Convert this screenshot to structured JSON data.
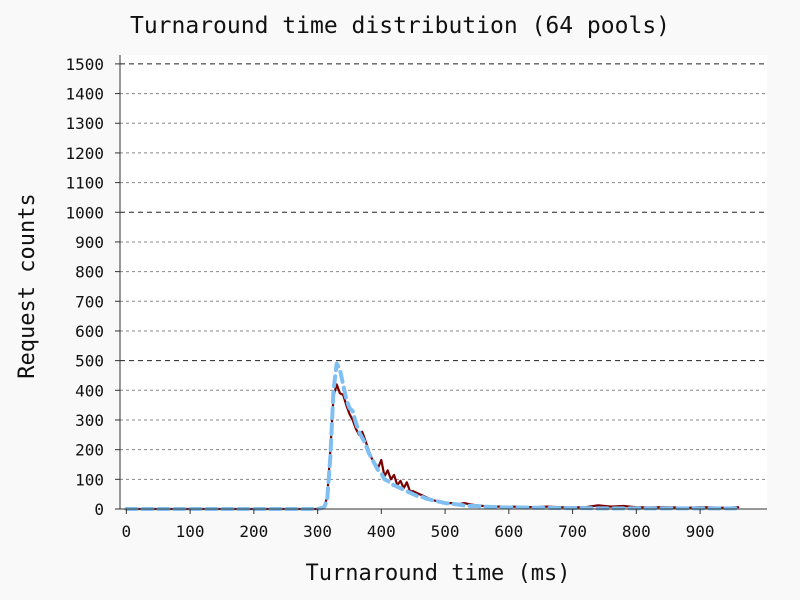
{
  "chart_data": {
    "type": "line",
    "title": "Turnaround time distribution (64 pools)",
    "xlabel": "Turnaround time (ms)",
    "ylabel": "Request counts",
    "xlim": [
      -10,
      1005
    ],
    "ylim": [
      0,
      1530
    ],
    "x_ticks": [
      0,
      100,
      200,
      300,
      400,
      500,
      600,
      700,
      800,
      900
    ],
    "y_ticks": [
      0,
      100,
      200,
      300,
      400,
      500,
      600,
      700,
      800,
      900,
      1000,
      1100,
      1200,
      1300,
      1400,
      1500
    ],
    "y_major_ticks": [
      500,
      1000,
      1500
    ],
    "grid": "horizontal dashed",
    "legend": "none",
    "series": [
      {
        "color": "#7a0000",
        "style": "solid",
        "x": [
          0,
          100,
          200,
          300,
          310,
          315,
          320,
          325,
          330,
          335,
          340,
          345,
          350,
          355,
          360,
          365,
          370,
          375,
          380,
          385,
          390,
          395,
          400,
          405,
          410,
          415,
          420,
          425,
          430,
          435,
          440,
          445,
          450,
          455,
          460,
          465,
          470,
          480,
          490,
          500,
          510,
          520,
          530,
          540,
          550,
          560,
          580,
          600,
          620,
          640,
          660,
          680,
          700,
          720,
          740,
          760,
          780,
          800,
          820,
          840,
          860,
          880,
          900,
          920,
          940,
          960
        ],
        "values": [
          0,
          0,
          0,
          0,
          5,
          40,
          200,
          380,
          420,
          390,
          385,
          350,
          320,
          300,
          270,
          250,
          260,
          230,
          200,
          170,
          155,
          140,
          165,
          110,
          130,
          100,
          115,
          80,
          95,
          70,
          90,
          60,
          60,
          55,
          50,
          45,
          40,
          30,
          25,
          20,
          20,
          15,
          20,
          15,
          12,
          10,
          8,
          8,
          7,
          6,
          8,
          6,
          5,
          6,
          12,
          8,
          10,
          6,
          5,
          6,
          5,
          4,
          6,
          5,
          4,
          6
        ]
      },
      {
        "color": "#7fbff2",
        "style": "dashed",
        "x": [
          0,
          100,
          200,
          300,
          310,
          315,
          320,
          325,
          330,
          335,
          340,
          345,
          350,
          355,
          360,
          365,
          370,
          375,
          380,
          385,
          390,
          395,
          400,
          405,
          410,
          415,
          420,
          425,
          430,
          435,
          440,
          445,
          450,
          455,
          460,
          465,
          470,
          480,
          490,
          500,
          510,
          520,
          530,
          540,
          550,
          560,
          580,
          600,
          620,
          640,
          660,
          680,
          700,
          720,
          740,
          760,
          780,
          800,
          820,
          840,
          860,
          880,
          900,
          920,
          940,
          960
        ],
        "values": [
          0,
          0,
          0,
          0,
          5,
          30,
          180,
          400,
          490,
          470,
          420,
          370,
          340,
          330,
          290,
          260,
          240,
          220,
          190,
          170,
          150,
          130,
          120,
          100,
          95,
          85,
          80,
          75,
          70,
          65,
          60,
          55,
          50,
          45,
          40,
          40,
          35,
          30,
          25,
          20,
          18,
          15,
          12,
          10,
          10,
          8,
          6,
          5,
          5,
          4,
          4,
          3,
          3,
          3,
          2,
          2,
          2,
          2,
          2,
          2,
          2,
          2,
          2,
          2,
          2,
          2
        ]
      }
    ]
  }
}
